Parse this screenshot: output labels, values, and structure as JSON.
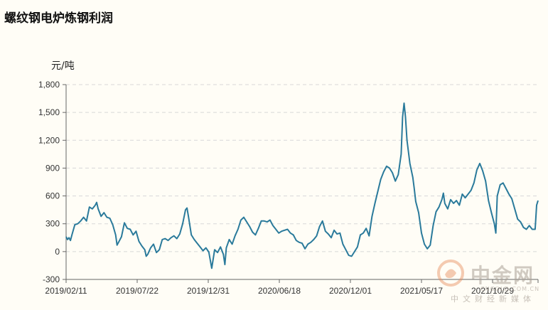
{
  "chart_data": {
    "type": "line",
    "title": "螺纹钢电炉炼钢利润",
    "ylabel": "元/吨",
    "ylim": [
      -300,
      1800
    ],
    "yticks": [
      -300,
      0,
      300,
      600,
      900,
      1200,
      1500,
      1800
    ],
    "ytick_labels": [
      "-300",
      "0",
      "300",
      "600",
      "900",
      "1,200",
      "1,500",
      "1,800"
    ],
    "xtick_labels": [
      "2019/02/11",
      "2019/07/22",
      "2019/12/31",
      "2020/06/18",
      "2020/12/01",
      "2021/05/17",
      "2021/10/29"
    ],
    "grid": true,
    "line_color": "#2a7a9b",
    "series": [
      {
        "name": "",
        "points": [
          [
            0,
            160
          ],
          [
            0.5,
            130
          ],
          [
            1,
            150
          ],
          [
            1.5,
            120
          ],
          [
            2,
            180
          ],
          [
            3,
            290
          ],
          [
            4,
            300
          ],
          [
            5,
            330
          ],
          [
            6,
            370
          ],
          [
            7,
            330
          ],
          [
            8,
            480
          ],
          [
            9,
            460
          ],
          [
            10,
            500
          ],
          [
            10.5,
            530
          ],
          [
            11,
            460
          ],
          [
            12,
            380
          ],
          [
            13,
            420
          ],
          [
            14,
            370
          ],
          [
            15,
            360
          ],
          [
            16,
            290
          ],
          [
            17,
            180
          ],
          [
            17.5,
            70
          ],
          [
            18,
            100
          ],
          [
            19,
            160
          ],
          [
            20,
            310
          ],
          [
            21,
            250
          ],
          [
            22,
            240
          ],
          [
            23,
            180
          ],
          [
            24,
            220
          ],
          [
            25,
            110
          ],
          [
            26,
            60
          ],
          [
            27,
            20
          ],
          [
            27.5,
            -50
          ],
          [
            28,
            -30
          ],
          [
            29,
            40
          ],
          [
            30,
            80
          ],
          [
            31,
            -10
          ],
          [
            32,
            20
          ],
          [
            33,
            130
          ],
          [
            34,
            140
          ],
          [
            35,
            120
          ],
          [
            36,
            150
          ],
          [
            37,
            170
          ],
          [
            38,
            140
          ],
          [
            39,
            190
          ],
          [
            40,
            300
          ],
          [
            41,
            450
          ],
          [
            41.5,
            470
          ],
          [
            42,
            380
          ],
          [
            43,
            180
          ],
          [
            44,
            130
          ],
          [
            45,
            90
          ],
          [
            46,
            50
          ],
          [
            47,
            10
          ],
          [
            48,
            40
          ],
          [
            49,
            -5
          ],
          [
            50,
            -180
          ],
          [
            51,
            20
          ],
          [
            52,
            -10
          ],
          [
            53,
            50
          ],
          [
            54,
            -30
          ],
          [
            54.5,
            -140
          ],
          [
            55,
            40
          ],
          [
            56,
            130
          ],
          [
            57,
            80
          ],
          [
            58,
            170
          ],
          [
            59,
            240
          ],
          [
            60,
            340
          ],
          [
            61,
            370
          ],
          [
            62,
            320
          ],
          [
            63,
            270
          ],
          [
            64,
            210
          ],
          [
            65,
            180
          ],
          [
            66,
            250
          ],
          [
            67,
            330
          ],
          [
            68,
            330
          ],
          [
            69,
            320
          ],
          [
            70,
            340
          ],
          [
            71,
            280
          ],
          [
            72,
            240
          ],
          [
            73,
            200
          ],
          [
            74,
            220
          ],
          [
            75,
            230
          ],
          [
            76,
            240
          ],
          [
            77,
            200
          ],
          [
            78,
            180
          ],
          [
            79,
            120
          ],
          [
            80,
            100
          ],
          [
            81,
            90
          ],
          [
            82,
            30
          ],
          [
            83,
            80
          ],
          [
            84,
            100
          ],
          [
            85,
            130
          ],
          [
            86,
            170
          ],
          [
            87,
            270
          ],
          [
            88,
            330
          ],
          [
            89,
            220
          ],
          [
            90,
            190
          ],
          [
            91,
            150
          ],
          [
            92,
            230
          ],
          [
            93,
            190
          ],
          [
            94,
            200
          ],
          [
            95,
            80
          ],
          [
            96,
            20
          ],
          [
            97,
            -40
          ],
          [
            98,
            -50
          ],
          [
            99,
            0
          ],
          [
            100,
            50
          ],
          [
            101,
            180
          ],
          [
            102,
            200
          ],
          [
            103,
            250
          ],
          [
            104,
            170
          ],
          [
            105,
            380
          ],
          [
            106,
            520
          ],
          [
            107,
            650
          ],
          [
            108,
            780
          ],
          [
            109,
            860
          ],
          [
            110,
            920
          ],
          [
            111,
            900
          ],
          [
            112,
            850
          ],
          [
            113,
            760
          ],
          [
            114,
            830
          ],
          [
            115,
            1050
          ],
          [
            115.5,
            1450
          ],
          [
            116,
            1600
          ],
          [
            116.5,
            1450
          ],
          [
            117,
            1200
          ],
          [
            118,
            950
          ],
          [
            119,
            800
          ],
          [
            119.5,
            680
          ],
          [
            120,
            540
          ],
          [
            121,
            420
          ],
          [
            122,
            200
          ],
          [
            123,
            80
          ],
          [
            124,
            30
          ],
          [
            125,
            70
          ],
          [
            126,
            280
          ],
          [
            127,
            430
          ],
          [
            128,
            480
          ],
          [
            129,
            560
          ],
          [
            129.5,
            630
          ],
          [
            130,
            520
          ],
          [
            131,
            460
          ],
          [
            132,
            560
          ],
          [
            133,
            520
          ],
          [
            134,
            550
          ],
          [
            135,
            500
          ],
          [
            136,
            620
          ],
          [
            137,
            580
          ],
          [
            138,
            620
          ],
          [
            139,
            660
          ],
          [
            140,
            740
          ],
          [
            141,
            880
          ],
          [
            142,
            950
          ],
          [
            143,
            870
          ],
          [
            144,
            760
          ],
          [
            145,
            550
          ],
          [
            146,
            420
          ],
          [
            147,
            300
          ],
          [
            147.5,
            200
          ],
          [
            148,
            600
          ],
          [
            149,
            720
          ],
          [
            150,
            740
          ],
          [
            151,
            680
          ],
          [
            152,
            620
          ],
          [
            153,
            570
          ],
          [
            154,
            460
          ],
          [
            155,
            350
          ],
          [
            156,
            320
          ],
          [
            157,
            260
          ],
          [
            158,
            240
          ],
          [
            159,
            280
          ],
          [
            160,
            240
          ],
          [
            161,
            240
          ],
          [
            161.5,
            500
          ],
          [
            162,
            550
          ]
        ]
      }
    ]
  },
  "watermark": {
    "brand": "中金网",
    "url": "CNGOLD.COM.CN",
    "tagline": "中文财经新媒体"
  }
}
